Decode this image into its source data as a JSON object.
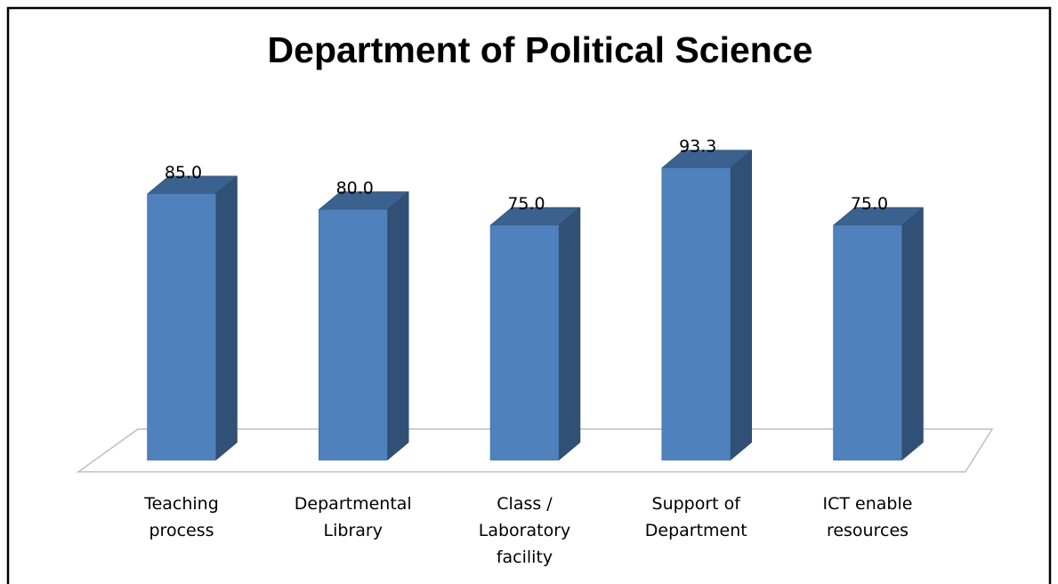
{
  "chart_data": {
    "type": "bar3d",
    "title": "Department of Political Science",
    "categories": [
      "Teaching process",
      "Departmental Library",
      "Class / Laboratory facility",
      "Support of Department",
      "ICT enable resources"
    ],
    "values": [
      85,
      80,
      75,
      93.3,
      75
    ],
    "value_labels": [
      "85.0",
      "80.0",
      "75.0",
      "93.3",
      "75.0"
    ],
    "color": "#4f81bd"
  }
}
